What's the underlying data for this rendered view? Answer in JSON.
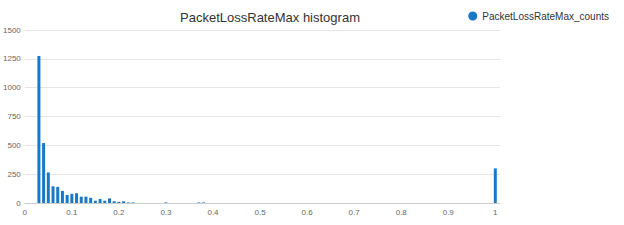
{
  "chart_data": {
    "type": "bar",
    "title": "PacketLossRateMax histogram",
    "x": [
      0.03,
      0.04,
      0.05,
      0.06,
      0.07,
      0.08,
      0.09,
      0.1,
      0.11,
      0.12,
      0.13,
      0.14,
      0.15,
      0.16,
      0.17,
      0.18,
      0.19,
      0.2,
      0.21,
      0.22,
      0.23,
      0.3,
      0.37,
      0.38,
      1.0
    ],
    "series": [
      {
        "name": "PacketLossRateMax_counts",
        "color": "#1979c9",
        "values": [
          1275,
          520,
          265,
          145,
          140,
          105,
          70,
          80,
          85,
          55,
          55,
          45,
          20,
          35,
          20,
          40,
          15,
          10,
          15,
          5,
          5,
          5,
          5,
          5,
          300
        ]
      }
    ],
    "xlim": [
      0,
      1.01
    ],
    "xticks": [
      0,
      0.1,
      0.2,
      0.3,
      0.4,
      0.5,
      0.6,
      0.7,
      0.8,
      0.9,
      1
    ],
    "ylim": [
      0,
      1500
    ],
    "yticks": [
      0,
      250,
      500,
      750,
      1000,
      1250,
      1500
    ],
    "grid": true,
    "legend": "top-right"
  }
}
